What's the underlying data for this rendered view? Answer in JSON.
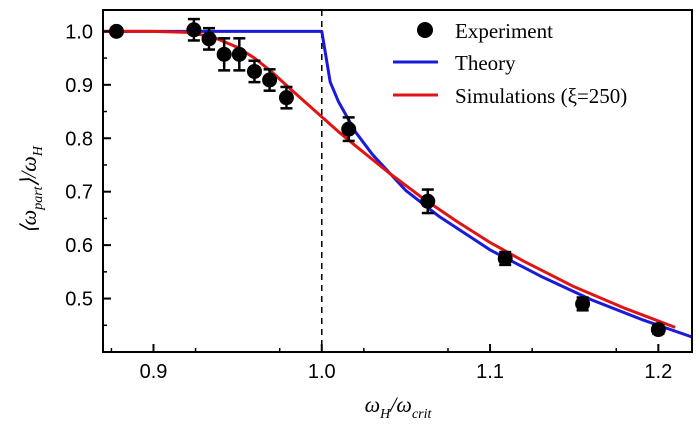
{
  "chart_data": {
    "type": "line",
    "title": "",
    "xlabel": "ωH/ωcrit",
    "ylabel": "⟨ωpart⟩/ωH",
    "xlim": [
      0.87,
      1.22
    ],
    "ylim": [
      0.4,
      1.04
    ],
    "x_ticks": [
      0.9,
      1.0,
      1.1,
      1.2
    ],
    "x_tick_labels": [
      "0.9",
      "1.0",
      "1.1",
      "1.2"
    ],
    "y_ticks": [
      0.5,
      0.6,
      0.7,
      0.8,
      0.9,
      1.0
    ],
    "y_tick_labels": [
      "0.5",
      "0.6",
      "0.7",
      "0.8",
      "0.9",
      "1.0"
    ],
    "vertical_reference_line_x": 1.0,
    "legend_position": "top-right",
    "series": [
      {
        "name": "Experiment",
        "kind": "scatter-errorbar",
        "color": "#000000",
        "x": [
          0.878,
          0.924,
          0.933,
          0.942,
          0.951,
          0.96,
          0.969,
          0.979,
          1.016,
          1.063,
          1.109,
          1.155,
          1.2
        ],
        "y": [
          1.0,
          1.003,
          0.986,
          0.957,
          0.957,
          0.925,
          0.909,
          0.876,
          0.817,
          0.682,
          0.575,
          0.49,
          0.442
        ],
        "err": [
          0.0,
          0.02,
          0.02,
          0.03,
          0.03,
          0.02,
          0.02,
          0.02,
          0.022,
          0.022,
          0.012,
          0.012,
          0.008
        ]
      },
      {
        "name": "Theory",
        "kind": "line",
        "color": "#1a1adb",
        "x": [
          0.87,
          0.9,
          0.95,
          0.999,
          1.0,
          1.005,
          1.01,
          1.02,
          1.03,
          1.05,
          1.07,
          1.1,
          1.13,
          1.16,
          1.19,
          1.22
        ],
        "y": [
          1.0,
          1.0,
          1.0,
          1.0,
          1.0,
          0.905,
          0.868,
          0.812,
          0.77,
          0.702,
          0.653,
          0.591,
          0.542,
          0.498,
          0.461,
          0.428
        ]
      },
      {
        "name": "Simulations (ξ=250)",
        "kind": "line",
        "color": "#e01414",
        "x": [
          0.87,
          0.9,
          0.92,
          0.935,
          0.95,
          0.96,
          0.97,
          0.98,
          0.99,
          1.0,
          1.01,
          1.02,
          1.04,
          1.06,
          1.08,
          1.1,
          1.12,
          1.15,
          1.18,
          1.21
        ],
        "y": [
          1.0,
          1.0,
          0.998,
          0.99,
          0.97,
          0.95,
          0.925,
          0.896,
          0.868,
          0.84,
          0.812,
          0.786,
          0.735,
          0.688,
          0.645,
          0.605,
          0.57,
          0.522,
          0.482,
          0.446
        ]
      }
    ]
  }
}
